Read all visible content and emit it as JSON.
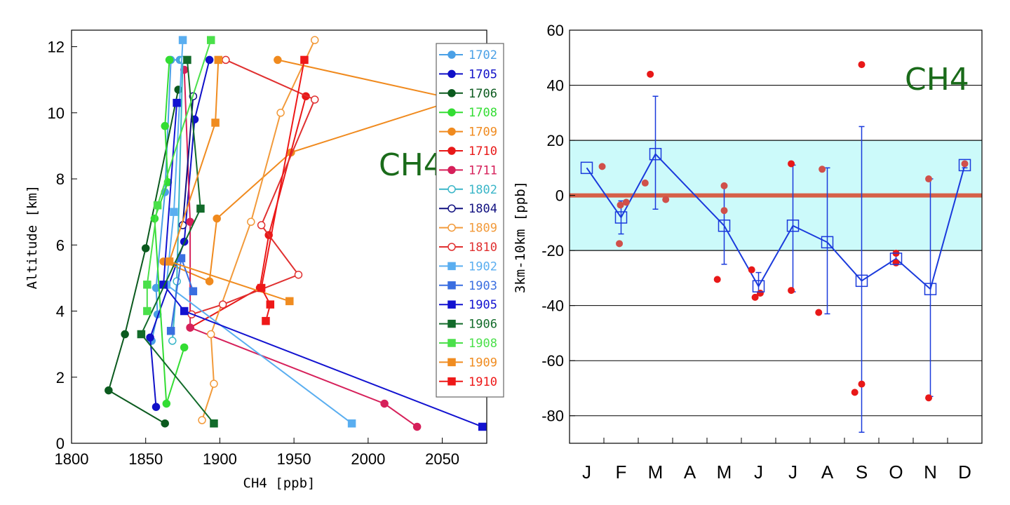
{
  "chart_data": [
    {
      "type": "line",
      "chart_label": "CH4",
      "xlabel": "CH4 [ppb]",
      "ylabel": "Altitude [km]",
      "xlim": [
        1800,
        2080
      ],
      "ylim": [
        0,
        12.5
      ],
      "xticks": [
        "1800",
        "1850",
        "1900",
        "1950",
        "2000",
        "2050"
      ],
      "yticks": [
        "0",
        "2",
        "4",
        "6",
        "8",
        "10",
        "12"
      ],
      "legend_position": "right",
      "series": [
        {
          "name": "1702",
          "color": "#4aa0e6",
          "marker": "circle",
          "fill": true,
          "points": [
            [
              1854,
              3.1
            ],
            [
              1858,
              3.9
            ],
            [
              1857,
              4.7
            ],
            [
              1863,
              7.6
            ],
            [
              1867,
              11.6
            ],
            [
              1873,
              11.6
            ]
          ]
        },
        {
          "name": "1705",
          "color": "#1010c8",
          "marker": "circle",
          "fill": true,
          "points": [
            [
              1857,
              1.1
            ],
            [
              1853,
              3.2
            ],
            [
              1876,
              6.1
            ],
            [
              1883,
              9.8
            ],
            [
              1893,
              11.6
            ]
          ]
        },
        {
          "name": "1706",
          "color": "#0b5a1e",
          "marker": "circle",
          "fill": true,
          "points": [
            [
              1863,
              0.6
            ],
            [
              1825,
              1.6
            ],
            [
              1836,
              3.3
            ],
            [
              1850,
              5.9
            ],
            [
              1872,
              10.7
            ]
          ]
        },
        {
          "name": "1708",
          "color": "#33dd33",
          "marker": "circle",
          "fill": true,
          "points": [
            [
              1876,
              2.9
            ],
            [
              1864,
              1.2
            ],
            [
              1856,
              6.8
            ],
            [
              1865,
              7.9
            ],
            [
              1863,
              9.6
            ],
            [
              1866,
              11.6
            ]
          ]
        },
        {
          "name": "1709",
          "color": "#f08a1e",
          "marker": "circle",
          "fill": true,
          "points": [
            [
              1862,
              5.5
            ],
            [
              1893,
              4.9
            ],
            [
              1898,
              6.8
            ],
            [
              1948,
              8.8
            ],
            [
              2060,
              10.4
            ],
            [
              1939,
              11.6
            ]
          ]
        },
        {
          "name": "1710",
          "color": "#e81818",
          "marker": "circle",
          "fill": true,
          "points": [
            [
              1880,
              3.5
            ],
            [
              1927,
              4.7
            ],
            [
              1933,
              6.3
            ],
            [
              1958,
              10.5
            ]
          ]
        },
        {
          "name": "1711",
          "color": "#d6205a",
          "marker": "circle",
          "fill": true,
          "points": [
            [
              2033,
              0.5
            ],
            [
              2011,
              1.2
            ],
            [
              1880,
              3.5
            ],
            [
              1880,
              6.7
            ],
            [
              1876,
              11.3
            ]
          ]
        },
        {
          "name": "1802",
          "color": "#3ab6c8",
          "marker": "circle",
          "fill": false,
          "points": [
            [
              1868,
              3.1
            ],
            [
              1871,
              4.9
            ],
            [
              1875,
              11.6
            ]
          ]
        },
        {
          "name": "1804",
          "color": "#101080",
          "marker": "circle",
          "fill": false,
          "points": [
            [
              1875,
              6.6
            ],
            [
              1882,
              10.5
            ]
          ]
        },
        {
          "name": "1809",
          "color": "#f29a3a",
          "marker": "circle",
          "fill": false,
          "points": [
            [
              1888,
              0.7
            ],
            [
              1896,
              1.8
            ],
            [
              1894,
              3.3
            ],
            [
              1921,
              6.7
            ],
            [
              1941,
              10.0
            ],
            [
              1964,
              12.2
            ]
          ]
        },
        {
          "name": "1810",
          "color": "#e03030",
          "marker": "circle",
          "fill": false,
          "points": [
            [
              1881,
              3.9
            ],
            [
              1902,
              4.2
            ],
            [
              1953,
              5.1
            ],
            [
              1928,
              6.6
            ],
            [
              1964,
              10.4
            ],
            [
              1904,
              11.6
            ]
          ]
        },
        {
          "name": "1902",
          "color": "#5aaef0",
          "marker": "square",
          "fill": true,
          "points": [
            [
              1989,
              0.6
            ],
            [
              1864,
              4.8
            ],
            [
              1869,
              7.0
            ],
            [
              1875,
              12.2
            ]
          ]
        },
        {
          "name": "1903",
          "color": "#3a6ee0",
          "marker": "square",
          "fill": true,
          "points": [
            [
              1867,
              3.4
            ],
            [
              1874,
              5.6
            ],
            [
              1882,
              4.6
            ]
          ]
        },
        {
          "name": "1905",
          "color": "#1212d0",
          "marker": "square",
          "fill": true,
          "points": [
            [
              2077,
              0.5
            ],
            [
              1876,
              4.0
            ],
            [
              1862,
              4.8
            ],
            [
              1871,
              10.3
            ]
          ]
        },
        {
          "name": "1906",
          "color": "#126b2a",
          "marker": "square",
          "fill": true,
          "points": [
            [
              1896,
              0.6
            ],
            [
              1847,
              3.3
            ],
            [
              1887,
              7.1
            ],
            [
              1878,
              11.6
            ]
          ]
        },
        {
          "name": "1908",
          "color": "#4ae04a",
          "marker": "square",
          "fill": true,
          "points": [
            [
              1851,
              4.0
            ],
            [
              1851,
              4.8
            ],
            [
              1858,
              7.2
            ],
            [
              1894,
              12.2
            ]
          ]
        },
        {
          "name": "1909",
          "color": "#f08c20",
          "marker": "square",
          "fill": true,
          "points": [
            [
              1947,
              4.3
            ],
            [
              1866,
              5.5
            ],
            [
              1897,
              9.7
            ],
            [
              1899,
              11.6
            ]
          ]
        },
        {
          "name": "1910",
          "color": "#ee1818",
          "marker": "square",
          "fill": true,
          "points": [
            [
              1931,
              3.7
            ],
            [
              1934,
              4.2
            ],
            [
              1928,
              4.7
            ],
            [
              1957,
              11.6
            ]
          ]
        }
      ]
    },
    {
      "type": "scatter",
      "chart_label": "CH4",
      "ylabel": "3km-10km [ppb]",
      "xlabel": "",
      "ylim": [
        -90,
        60
      ],
      "yticks": [
        "-80",
        "-60",
        "-40",
        "-20",
        "0",
        "20",
        "40",
        "60"
      ],
      "categories": [
        "J",
        "F",
        "M",
        "A",
        "M",
        "J",
        "J",
        "A",
        "S",
        "O",
        "N",
        "D"
      ],
      "grid": true,
      "band": {
        "from": -20,
        "to": 20,
        "color": "#ccfafa"
      },
      "zero_line_color": "#d66048",
      "monthly_mean": {
        "name": "",
        "color": "#1a3adc",
        "points": [
          [
            0.0,
            10
          ],
          [
            1.0,
            -8
          ],
          [
            2.0,
            15
          ],
          [
            4.0,
            -11
          ],
          [
            5.0,
            -33
          ],
          [
            6.0,
            -11
          ],
          [
            7.0,
            -17
          ],
          [
            8.0,
            -31
          ],
          [
            9.0,
            -23
          ],
          [
            10.0,
            -34
          ],
          [
            11.0,
            11
          ]
        ]
      },
      "error_bars": [
        {
          "x": 1.0,
          "low": -14,
          "high": -2
        },
        {
          "x": 2.0,
          "low": -5,
          "high": 36
        },
        {
          "x": 4.0,
          "low": -25,
          "high": 3
        },
        {
          "x": 5.0,
          "low": -36,
          "high": -28
        },
        {
          "x": 6.0,
          "low": -35,
          "high": 11
        },
        {
          "x": 7.0,
          "low": -43,
          "high": 10
        },
        {
          "x": 8.0,
          "low": -86,
          "high": 25
        },
        {
          "x": 9.0,
          "low": -25,
          "high": -21
        },
        {
          "x": 10.0,
          "low": -73,
          "high": 6
        },
        {
          "x": 11.0,
          "low": 10,
          "high": 12
        }
      ],
      "individual_points": [
        {
          "x": 0.45,
          "y": 10.5,
          "color": "#d0504a"
        },
        {
          "x": 0.95,
          "y": -17.5,
          "color": "#d0504a"
        },
        {
          "x": 0.98,
          "y": -3.5,
          "color": "#d0504a"
        },
        {
          "x": 1.15,
          "y": -2.5,
          "color": "#d0504a"
        },
        {
          "x": 1.7,
          "y": 4.5,
          "color": "#d0504a"
        },
        {
          "x": 2.3,
          "y": -1.5,
          "color": "#d0504a"
        },
        {
          "x": 1.85,
          "y": 44,
          "color": "#e81818"
        },
        {
          "x": 3.8,
          "y": -30.5,
          "color": "#e81818"
        },
        {
          "x": 4.0,
          "y": 3.5,
          "color": "#d0504a"
        },
        {
          "x": 4.0,
          "y": -5.5,
          "color": "#d0504a"
        },
        {
          "x": 4.8,
          "y": -27,
          "color": "#e81818"
        },
        {
          "x": 4.9,
          "y": -37,
          "color": "#e81818"
        },
        {
          "x": 5.05,
          "y": -35.5,
          "color": "#e81818"
        },
        {
          "x": 5.95,
          "y": 11.5,
          "color": "#e81818"
        },
        {
          "x": 5.95,
          "y": -34.5,
          "color": "#e81818"
        },
        {
          "x": 6.85,
          "y": 9.5,
          "color": "#d0504a"
        },
        {
          "x": 6.75,
          "y": -42.5,
          "color": "#e81818"
        },
        {
          "x": 7.8,
          "y": -71.5,
          "color": "#e81818"
        },
        {
          "x": 8.0,
          "y": 47.5,
          "color": "#e81818"
        },
        {
          "x": 8.0,
          "y": -68.5,
          "color": "#e81818"
        },
        {
          "x": 9.0,
          "y": -21,
          "color": "#e81818"
        },
        {
          "x": 9.0,
          "y": -24.5,
          "color": "#e81818"
        },
        {
          "x": 9.95,
          "y": 6,
          "color": "#d0504a"
        },
        {
          "x": 9.95,
          "y": -73.5,
          "color": "#e81818"
        },
        {
          "x": 11.0,
          "y": 11.5,
          "color": "#d0504a"
        }
      ]
    }
  ]
}
